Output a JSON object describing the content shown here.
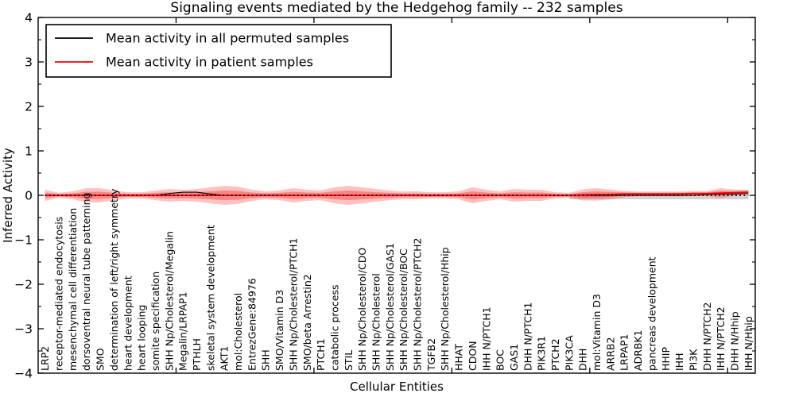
{
  "title": "Signaling events mediated by the Hedgehog family -- 232 samples",
  "axes": {
    "ylabel": "Inferred Activity",
    "xlabel": "Cellular Entities",
    "ylim": [
      -4,
      4
    ],
    "ytick_labels": [
      "4",
      "3",
      "2",
      "1",
      "0",
      "−1",
      "−2",
      "−3",
      "−4"
    ],
    "ytick_values": [
      4,
      3,
      2,
      1,
      0,
      -1,
      -2,
      -3,
      -4
    ]
  },
  "legend": {
    "entries": [
      {
        "label": "Mean activity in all permuted samples",
        "color": "#000000"
      },
      {
        "label": "Mean activity in patient samples",
        "color": "#ff0000"
      }
    ]
  },
  "colors": {
    "band_outer": "rgba(255,32,32,0.28)",
    "band_inner": "rgba(230,20,20,0.34)",
    "gray_band": "rgba(110,110,110,0.30)",
    "frame": "#000000",
    "zero_line": "#000000",
    "permuted_line": "#000000",
    "patient_line": "#ff0000"
  },
  "chart_data": {
    "type": "area",
    "title": "Signaling events mediated by the Hedgehog family -- 232 samples",
    "xlabel": "Cellular Entities",
    "ylabel": "Inferred Activity",
    "ylim": [
      -4,
      4
    ],
    "yticks": [
      4,
      3,
      2,
      1,
      0,
      -1,
      -2,
      -3,
      -4
    ],
    "grid": false,
    "legend_position": "upper left",
    "categories": [
      "LRP2",
      "receptor-mediated endocytosis",
      "mesenchymal cell differentiation",
      "dorsoventral neural tube patterning",
      "SMO",
      "determination of left/right symmetry",
      "heart development",
      "heart looping",
      "somite specification",
      "SHH Np/Cholesterol/Megalin",
      "Megalin/LRPAP1",
      "PTHLH",
      "skeletal system development",
      "AKT1",
      "mol:Cholesterol",
      "EntrezGene:84976",
      "SHH",
      "SMO/Vitamin D3",
      "SHH Np/Cholesterol/PTCH1",
      "SMO/beta Arrestin2",
      "PTCH1",
      "catabolic process",
      "STIL",
      "SHH Np/Cholesterol/CDO",
      "SHH Np/Cholesterol",
      "SHH Np/Cholesterol/GAS1",
      "SHH Np/Cholesterol/BOC",
      "SHH Np/Cholesterol/PTCH2",
      "TGFB2",
      "SHH Np/Cholesterol/Hhip",
      "HHAT",
      "CDON",
      "IHH N/PTCH1",
      "BOC",
      "GAS1",
      "DHH N/PTCH1",
      "PIK3R1",
      "PTCH2",
      "PIK3CA",
      "DHH",
      "mol:Vitamin D3",
      "ARRB2",
      "LRPAP1",
      "ADRBK1",
      "pancreas development",
      "HHIP",
      "IHH",
      "PI3K",
      "DHH N/PTCH2",
      "IHH N/PTCH2",
      "DHH N/Hhip",
      "IHH N/Hhip"
    ],
    "series": [
      {
        "name": "Mean activity in all permuted samples",
        "color": "#000000",
        "values": [
          0,
          0,
          0,
          0,
          0,
          0,
          0,
          0,
          0,
          0.04,
          0.07,
          0.07,
          0.03,
          0,
          0,
          0,
          0,
          0,
          0,
          0,
          0,
          0,
          0,
          0,
          0,
          0,
          0,
          0,
          0,
          0,
          0,
          0,
          0,
          0,
          0,
          0,
          0,
          0,
          0,
          0,
          0,
          0,
          0,
          0,
          0,
          0,
          0,
          0,
          0.02,
          0.03,
          0.03,
          0.04
        ]
      },
      {
        "name": "Mean activity in patient samples",
        "color": "#ff0000",
        "values": [
          0,
          0,
          0,
          0,
          0,
          0,
          0,
          0,
          0,
          0,
          0,
          0,
          0,
          0,
          0,
          0,
          0,
          0,
          0,
          0,
          0,
          0,
          0,
          0,
          0,
          0,
          0,
          0,
          0,
          0,
          0,
          0,
          0,
          0,
          0,
          0,
          0,
          0,
          0,
          0.01,
          0.02,
          0.02,
          0.03,
          0.03,
          0.03,
          0.03,
          0.03,
          0.04,
          0.04,
          0.05,
          0.06,
          0.07
        ]
      }
    ],
    "patient_band_halfwidth": [
      0.125,
      0.055,
      0.09,
      0.16,
      0.16,
      0.11,
      0.07,
      0.07,
      0.11,
      0.14,
      0.125,
      0.14,
      0.18,
      0.215,
      0.195,
      0.125,
      0.09,
      0.11,
      0.16,
      0.125,
      0.11,
      0.18,
      0.215,
      0.18,
      0.14,
      0.11,
      0.09,
      0.09,
      0.07,
      0.07,
      0.09,
      0.18,
      0.125,
      0.09,
      0.14,
      0.125,
      0.125,
      0.07,
      0.055,
      0.125,
      0.14,
      0.11,
      0.07,
      0.055,
      0.055,
      0.055,
      0.055,
      0.055,
      0.055,
      0.11,
      0.07,
      0.055
    ],
    "inner_band_ratio": 0.5,
    "permuted_gray_band": {
      "from_index": 38,
      "to_index": 51,
      "upper": 0.01,
      "lower": -0.09
    },
    "zero_line_value": 0
  }
}
